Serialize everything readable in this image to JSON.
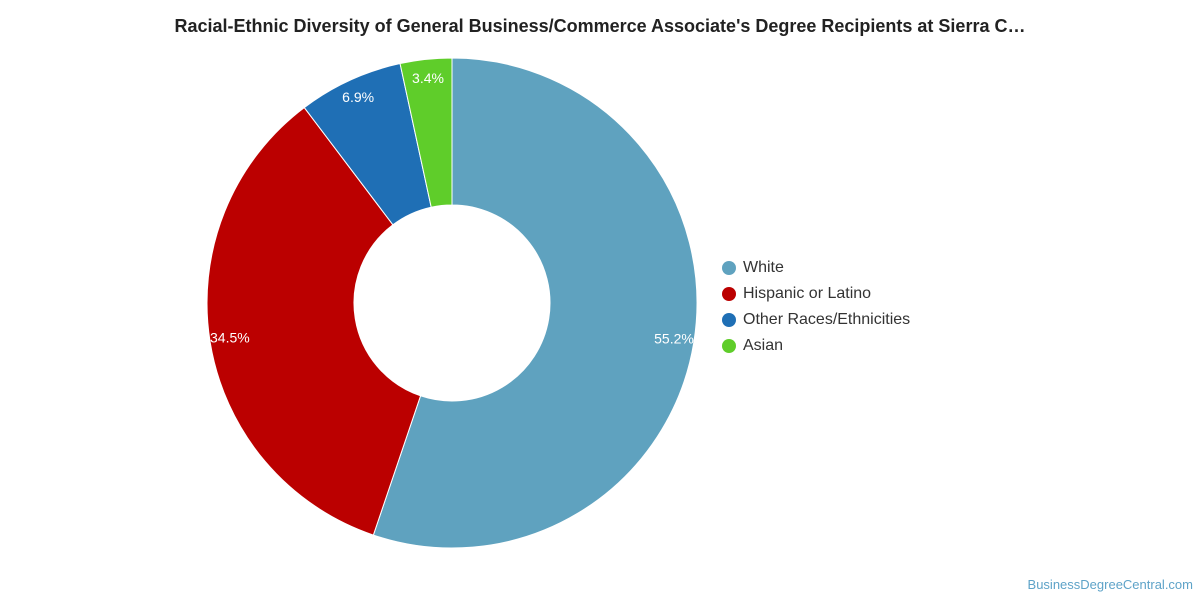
{
  "chart_data": {
    "type": "pie",
    "title": "Racial-Ethnic Diversity of General Business/Commerce Associate's Degree Recipients at Sierra C…",
    "donut": true,
    "legend_position": "right",
    "series": [
      {
        "name": "White",
        "value": 55.2,
        "label": "55.2%",
        "color": "#5fa2bf"
      },
      {
        "name": "Hispanic or Latino",
        "value": 34.5,
        "label": "34.5%",
        "color": "#bb0000"
      },
      {
        "name": "Other Races/Ethnicities",
        "value": 6.9,
        "label": "6.9%",
        "color": "#1f6fb5"
      },
      {
        "name": "Asian",
        "value": 3.4,
        "label": "3.4%",
        "color": "#5fcd2a"
      }
    ]
  },
  "footer": {
    "source": "BusinessDegreeCentral.com"
  }
}
